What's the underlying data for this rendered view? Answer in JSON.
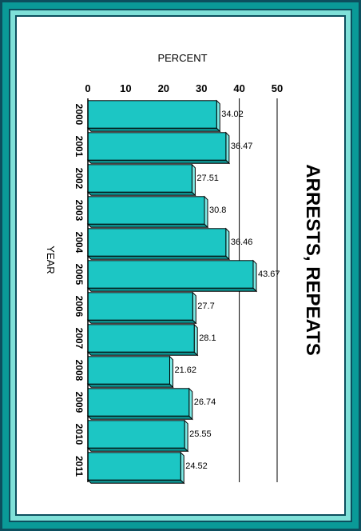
{
  "chart_data": {
    "type": "bar",
    "title": "ARRESTS, REPEATS",
    "xlabel": "YEAR",
    "ylabel": "PERCENT",
    "categories": [
      "2000",
      "2001",
      "2002",
      "2003",
      "2004",
      "2005",
      "2006",
      "2007",
      "2008",
      "2009",
      "2010",
      "2011"
    ],
    "values": [
      34.02,
      36.47,
      27.51,
      30.8,
      36.46,
      43.67,
      27.7,
      28.1,
      21.62,
      26.74,
      25.55,
      24.52
    ],
    "data_labels": [
      "34.02",
      "36.47",
      "27.51",
      "30.8",
      "36.46",
      "43.67",
      "27.7",
      "28.1",
      "21.62",
      "26.74",
      "25.55",
      "24.52"
    ],
    "ylim": [
      0,
      50
    ],
    "yticks": [
      "0",
      "10",
      "20",
      "30",
      "40",
      "50"
    ],
    "orientation": "rotated 90 degrees clockwise",
    "colors": {
      "bar": "#1cc6c4",
      "bar_top": "#7ce8e4",
      "bar_edge": "#000000",
      "frame_outer": "#0a9a98",
      "frame_mid": "#7fe0d8",
      "frame_border": "#0c4f5e"
    }
  }
}
